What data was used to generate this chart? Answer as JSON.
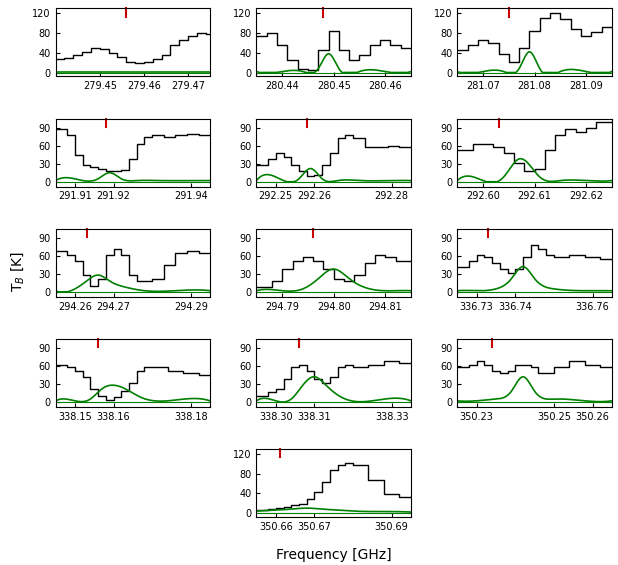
{
  "panels": [
    {
      "id": 0,
      "freq_range": [
        279.44,
        279.475
      ],
      "xticks": [
        279.45,
        279.46,
        279.47
      ],
      "xtick_labels": [
        "279.45",
        "279.46",
        "279.47"
      ],
      "ylim": [
        -8,
        130
      ],
      "yticks": [
        0,
        40,
        80,
        120
      ],
      "red_line_x": 279.456,
      "black_steps": {
        "x": [
          279.44,
          279.442,
          279.444,
          279.446,
          279.448,
          279.45,
          279.452,
          279.454,
          279.456,
          279.458,
          279.46,
          279.462,
          279.464,
          279.466,
          279.468,
          279.47,
          279.472,
          279.474,
          279.476
        ],
        "y": [
          28,
          30,
          35,
          42,
          50,
          48,
          40,
          32,
          22,
          20,
          22,
          28,
          35,
          55,
          65,
          75,
          80,
          78,
          75
        ]
      },
      "green_x": [
        279.44,
        279.445,
        279.45,
        279.455,
        279.46,
        279.465,
        279.47,
        279.475
      ],
      "green_y": [
        2,
        2,
        2,
        2,
        2,
        2,
        2,
        2
      ]
    },
    {
      "id": 1,
      "freq_range": [
        280.435,
        280.465
      ],
      "xticks": [
        280.44,
        280.45,
        280.46
      ],
      "xtick_labels": [
        "280.44",
        "280.45",
        "280.46"
      ],
      "ylim": [
        -8,
        130
      ],
      "yticks": [
        0,
        40,
        80,
        120
      ],
      "red_line_x": 280.448,
      "black_steps": {
        "x": [
          280.435,
          280.437,
          280.439,
          280.441,
          280.443,
          280.445,
          280.447,
          280.449,
          280.451,
          280.453,
          280.455,
          280.457,
          280.459,
          280.461,
          280.463,
          280.465
        ],
        "y": [
          75,
          80,
          55,
          25,
          8,
          5,
          45,
          85,
          45,
          25,
          35,
          55,
          65,
          55,
          50,
          48
        ]
      },
      "green_x": [
        280.435,
        280.44,
        280.444,
        280.447,
        280.449,
        280.451,
        280.455,
        280.46,
        280.465
      ],
      "green_y": [
        2,
        2,
        2,
        8,
        38,
        8,
        2,
        2,
        2
      ]
    },
    {
      "id": 2,
      "freq_range": [
        281.065,
        281.095
      ],
      "xticks": [
        281.07,
        281.08,
        281.09
      ],
      "xtick_labels": [
        "281.07",
        "281.08",
        "281.09"
      ],
      "ylim": [
        -8,
        130
      ],
      "yticks": [
        0,
        40,
        80,
        120
      ],
      "red_line_x": 281.075,
      "black_steps": {
        "x": [
          281.065,
          281.067,
          281.069,
          281.071,
          281.073,
          281.075,
          281.077,
          281.079,
          281.081,
          281.083,
          281.085,
          281.087,
          281.089,
          281.091,
          281.093,
          281.095
        ],
        "y": [
          45,
          55,
          65,
          60,
          38,
          22,
          50,
          85,
          110,
          120,
          108,
          88,
          75,
          82,
          92,
          90
        ]
      },
      "green_x": [
        281.065,
        281.07,
        281.074,
        281.077,
        281.079,
        281.081,
        281.085,
        281.09,
        281.095
      ],
      "green_y": [
        2,
        2,
        2,
        8,
        42,
        8,
        2,
        2,
        2
      ]
    },
    {
      "id": 3,
      "freq_range": [
        291.905,
        291.945
      ],
      "xticks": [
        291.91,
        291.92,
        291.94
      ],
      "xtick_labels": [
        "291.91",
        "291.92",
        "291.94"
      ],
      "ylim": [
        -8,
        105
      ],
      "yticks": [
        0,
        30,
        60,
        90
      ],
      "red_line_x": 291.918,
      "black_steps": {
        "x": [
          291.905,
          291.908,
          291.91,
          291.912,
          291.914,
          291.916,
          291.918,
          291.92,
          291.922,
          291.924,
          291.926,
          291.928,
          291.93,
          291.933,
          291.936,
          291.939,
          291.942,
          291.945
        ],
        "y": [
          88,
          78,
          45,
          28,
          25,
          22,
          18,
          18,
          20,
          38,
          62,
          75,
          78,
          75,
          78,
          80,
          78,
          75
        ]
      },
      "green_x": [
        291.905,
        291.912,
        291.916,
        291.919,
        291.922,
        291.926,
        291.932,
        291.94,
        291.945
      ],
      "green_y": [
        2,
        2,
        5,
        15,
        5,
        2,
        2,
        2,
        2
      ]
    },
    {
      "id": 4,
      "freq_range": [
        292.245,
        292.285
      ],
      "xticks": [
        292.25,
        292.26,
        292.28
      ],
      "xtick_labels": [
        "292.25",
        "292.26",
        "292.28"
      ],
      "ylim": [
        -8,
        105
      ],
      "yticks": [
        0,
        30,
        60,
        90
      ],
      "red_line_x": 292.258,
      "black_steps": {
        "x": [
          292.245,
          292.248,
          292.25,
          292.252,
          292.254,
          292.256,
          292.258,
          292.26,
          292.262,
          292.264,
          292.266,
          292.268,
          292.27,
          292.273,
          292.276,
          292.279,
          292.282,
          292.285
        ],
        "y": [
          28,
          38,
          48,
          42,
          28,
          18,
          10,
          12,
          28,
          48,
          72,
          78,
          72,
          58,
          58,
          60,
          58,
          55
        ]
      },
      "green_x": [
        292.245,
        292.252,
        292.256,
        292.259,
        292.262,
        292.266,
        292.272,
        292.28,
        292.285
      ],
      "green_y": [
        2,
        2,
        5,
        22,
        5,
        2,
        2,
        2,
        2
      ]
    },
    {
      "id": 5,
      "freq_range": [
        292.595,
        292.625
      ],
      "xticks": [
        292.6,
        292.61,
        292.62
      ],
      "xtick_labels": [
        "292.60",
        "292.61",
        "292.62"
      ],
      "ylim": [
        -8,
        105
      ],
      "yticks": [
        0,
        30,
        60,
        90
      ],
      "red_line_x": 292.603,
      "black_steps": {
        "x": [
          292.595,
          292.598,
          292.6,
          292.602,
          292.604,
          292.606,
          292.608,
          292.61,
          292.612,
          292.614,
          292.616,
          292.618,
          292.62,
          292.622,
          292.625
        ],
        "y": [
          52,
          62,
          62,
          58,
          48,
          32,
          18,
          22,
          52,
          78,
          88,
          82,
          90,
          100,
          98
        ]
      },
      "green_x": [
        292.595,
        292.6,
        292.604,
        292.607,
        292.611,
        292.615,
        292.62,
        292.625
      ],
      "green_y": [
        2,
        2,
        8,
        38,
        8,
        2,
        2,
        2
      ]
    },
    {
      "id": 6,
      "freq_range": [
        294.255,
        294.295
      ],
      "xticks": [
        294.26,
        294.27,
        294.29
      ],
      "xtick_labels": [
        "294.26",
        "294.27",
        "294.29"
      ],
      "ylim": [
        -8,
        105
      ],
      "yticks": [
        0,
        30,
        60,
        90
      ],
      "red_line_x": 294.263,
      "black_steps": {
        "x": [
          294.255,
          294.258,
          294.26,
          294.262,
          294.264,
          294.266,
          294.268,
          294.27,
          294.272,
          294.274,
          294.276,
          294.278,
          294.28,
          294.283,
          294.286,
          294.289,
          294.292,
          294.295
        ],
        "y": [
          68,
          62,
          52,
          28,
          10,
          22,
          62,
          72,
          62,
          28,
          18,
          18,
          22,
          45,
          65,
          68,
          65,
          62
        ]
      },
      "green_x": [
        294.255,
        294.26,
        294.263,
        294.266,
        294.269,
        294.273,
        294.278,
        294.286,
        294.295
      ],
      "green_y": [
        2,
        5,
        18,
        28,
        18,
        8,
        2,
        2,
        2
      ]
    },
    {
      "id": 7,
      "freq_range": [
        294.785,
        294.815
      ],
      "xticks": [
        294.79,
        294.8,
        294.81
      ],
      "xtick_labels": [
        "294.79",
        "294.80",
        "294.81"
      ],
      "ylim": [
        -8,
        105
      ],
      "yticks": [
        0,
        30,
        60,
        90
      ],
      "red_line_x": 294.796,
      "black_steps": {
        "x": [
          294.785,
          294.788,
          294.79,
          294.792,
          294.794,
          294.796,
          294.798,
          294.8,
          294.802,
          294.804,
          294.806,
          294.808,
          294.81,
          294.812,
          294.815
        ],
        "y": [
          8,
          18,
          38,
          52,
          58,
          52,
          38,
          22,
          18,
          28,
          48,
          62,
          58,
          52,
          48
        ]
      },
      "green_x": [
        294.785,
        294.79,
        294.794,
        294.797,
        294.8,
        294.803,
        294.807,
        294.812,
        294.815
      ],
      "green_y": [
        2,
        2,
        5,
        22,
        38,
        22,
        5,
        2,
        2
      ]
    },
    {
      "id": 8,
      "freq_range": [
        336.725,
        336.765
      ],
      "xticks": [
        336.73,
        336.74,
        336.76
      ],
      "xtick_labels": [
        "336.73",
        "336.74",
        "336.76"
      ],
      "ylim": [
        -8,
        105
      ],
      "yticks": [
        0,
        30,
        60,
        90
      ],
      "red_line_x": 336.733,
      "black_steps": {
        "x": [
          336.725,
          336.728,
          336.73,
          336.732,
          336.734,
          336.736,
          336.738,
          336.74,
          336.742,
          336.744,
          336.746,
          336.748,
          336.75,
          336.754,
          336.758,
          336.762,
          336.765
        ],
        "y": [
          42,
          52,
          62,
          58,
          48,
          38,
          32,
          38,
          58,
          78,
          72,
          62,
          58,
          62,
          58,
          55,
          52
        ]
      },
      "green_x": [
        336.725,
        336.73,
        336.735,
        336.739,
        336.742,
        336.745,
        336.75,
        336.758,
        336.765
      ],
      "green_y": [
        2,
        2,
        5,
        22,
        42,
        22,
        5,
        2,
        2
      ]
    },
    {
      "id": 9,
      "freq_range": [
        338.145,
        338.185
      ],
      "xticks": [
        338.15,
        338.16,
        338.18
      ],
      "xtick_labels": [
        "338.15",
        "338.16",
        "338.18"
      ],
      "ylim": [
        -8,
        105
      ],
      "yticks": [
        0,
        30,
        60,
        90
      ],
      "red_line_x": 338.156,
      "black_steps": {
        "x": [
          338.145,
          338.148,
          338.15,
          338.152,
          338.154,
          338.156,
          338.158,
          338.16,
          338.162,
          338.164,
          338.166,
          338.168,
          338.17,
          338.174,
          338.178,
          338.182,
          338.185
        ],
        "y": [
          62,
          58,
          52,
          42,
          22,
          10,
          4,
          8,
          18,
          32,
          52,
          58,
          58,
          52,
          48,
          45,
          42
        ]
      },
      "green_x": [
        338.145,
        338.15,
        338.154,
        338.157,
        338.16,
        338.163,
        338.167,
        338.174,
        338.185
      ],
      "green_y": [
        2,
        2,
        5,
        22,
        28,
        22,
        8,
        2,
        2
      ]
    },
    {
      "id": 10,
      "freq_range": [
        338.295,
        338.335
      ],
      "xticks": [
        338.3,
        338.31,
        338.33
      ],
      "xtick_labels": [
        "338.30",
        "338.31",
        "338.33"
      ],
      "ylim": [
        -8,
        105
      ],
      "yticks": [
        0,
        30,
        60,
        90
      ],
      "red_line_x": 338.306,
      "black_steps": {
        "x": [
          338.295,
          338.298,
          338.3,
          338.302,
          338.304,
          338.306,
          338.308,
          338.31,
          338.312,
          338.314,
          338.316,
          338.318,
          338.32,
          338.324,
          338.328,
          338.332,
          338.335
        ],
        "y": [
          10,
          16,
          22,
          38,
          58,
          62,
          52,
          38,
          32,
          42,
          58,
          62,
          58,
          62,
          68,
          65,
          62
        ]
      },
      "green_x": [
        338.295,
        338.3,
        338.304,
        338.307,
        338.31,
        338.313,
        338.317,
        338.325,
        338.335
      ],
      "green_y": [
        2,
        2,
        5,
        28,
        42,
        28,
        8,
        2,
        2
      ]
    },
    {
      "id": 11,
      "freq_range": [
        350.225,
        350.265
      ],
      "xticks": [
        350.23,
        350.25,
        350.26
      ],
      "xtick_labels": [
        "350.23",
        "350.25",
        "350.26"
      ],
      "ylim": [
        -8,
        105
      ],
      "yticks": [
        0,
        30,
        60,
        90
      ],
      "red_line_x": 350.234,
      "black_steps": {
        "x": [
          350.225,
          350.228,
          350.23,
          350.232,
          350.234,
          350.236,
          350.238,
          350.24,
          350.242,
          350.244,
          350.246,
          350.248,
          350.25,
          350.254,
          350.258,
          350.262,
          350.265
        ],
        "y": [
          58,
          62,
          68,
          62,
          52,
          48,
          52,
          62,
          62,
          58,
          48,
          48,
          58,
          68,
          62,
          58,
          55
        ]
      },
      "green_x": [
        350.225,
        350.23,
        350.235,
        350.239,
        350.242,
        350.245,
        350.25,
        350.258,
        350.265
      ],
      "green_y": [
        2,
        2,
        5,
        18,
        42,
        18,
        5,
        2,
        2
      ]
    },
    {
      "id": 12,
      "freq_range": [
        350.655,
        350.695
      ],
      "xticks": [
        350.66,
        350.67,
        350.69
      ],
      "xtick_labels": [
        "350.66",
        "350.67",
        "350.69"
      ],
      "ylim": [
        -8,
        130
      ],
      "yticks": [
        0,
        40,
        80,
        120
      ],
      "red_line_x": 350.661,
      "black_steps": {
        "x": [
          350.655,
          350.658,
          350.66,
          350.662,
          350.664,
          350.666,
          350.668,
          350.67,
          350.672,
          350.674,
          350.676,
          350.678,
          350.68,
          350.684,
          350.688,
          350.692,
          350.695
        ],
        "y": [
          6,
          8,
          10,
          12,
          16,
          18,
          28,
          42,
          62,
          88,
          98,
          102,
          98,
          68,
          38,
          32,
          28
        ]
      },
      "green_x": [
        350.655,
        350.66,
        350.664,
        350.668,
        350.672,
        350.676,
        350.68,
        350.688,
        350.695
      ],
      "green_y": [
        4,
        6,
        8,
        10,
        8,
        6,
        4,
        3,
        2
      ]
    }
  ],
  "ylabel": "T$_B$ [K]",
  "xlabel": "Frequency [GHz]",
  "black_color": "#000000",
  "green_color": "#008000",
  "red_color": "#cc0000"
}
